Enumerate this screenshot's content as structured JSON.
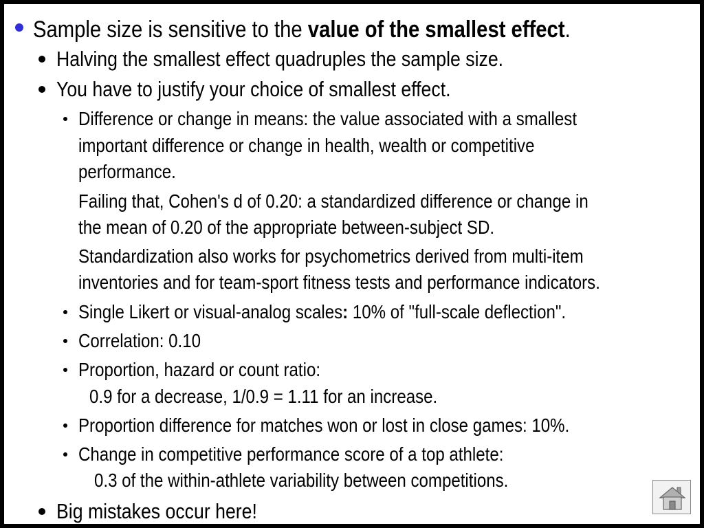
{
  "bullets": {
    "b1_pre": "Sample size is sensitive to the ",
    "b1_bold": "value of the smallest effect",
    "b1_post": ".",
    "halving": "Halving the smallest effect quadruples the sample size.",
    "justify": "You have to justify your choice of smallest effect.",
    "diff_1": "Difference or change in means: the value associated with a smallest",
    "diff_2": "important difference or change in health, wealth or competitive",
    "diff_3": "performance.",
    "cohen_1": "Failing that, Cohen's d of 0.20: a standardized difference or change in",
    "cohen_2": "the mean of 0.20 of the appropriate between-subject SD.",
    "std_1": "Standardization also works for psychometrics derived from multi-item",
    "std_2": "inventories and for team-sport fitness tests and performance indicators.",
    "likert_pre": "Single Likert or visual-analog scales",
    "likert_colon": ":",
    "likert_post": " 10% of \"full-scale deflection\".",
    "correlation": "Correlation: 0.10",
    "ratio_1": "Proportion, hazard or count ratio:",
    "ratio_2": "0.9 for a decrease, 1/0.9 = 1.11 for an increase.",
    "propdiff": "Proportion difference for matches won or lost in close games: 10%.",
    "perf_1": "Change in competitive performance score of a top athlete:",
    "perf_2": "0.3 of the within-athlete variability between competitions.",
    "mistakes": "Big mistakes occur here!"
  },
  "colors": {
    "level1_bullet": "#2f2fd8"
  },
  "icons": {
    "home": "home-icon"
  }
}
